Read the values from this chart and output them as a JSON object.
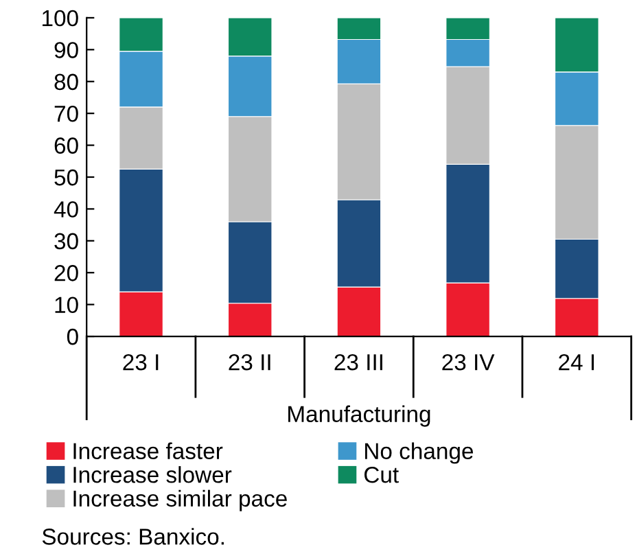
{
  "chart_data": {
    "type": "bar",
    "stacked": true,
    "xlabel": "Manufacturing",
    "categories": [
      "23 I",
      "23 II",
      "23 III",
      "23 IV",
      "24 I"
    ],
    "series": [
      {
        "name": "Increase faster",
        "color": "#ed1c2e",
        "values": [
          14,
          10.4,
          15.5,
          16.8,
          11.9
        ]
      },
      {
        "name": "Increase slower",
        "color": "#1f4e7f",
        "values": [
          38.5,
          25.6,
          27.4,
          37.2,
          18.6
        ]
      },
      {
        "name": "Increase similar pace",
        "color": "#bfbfbf",
        "values": [
          19.5,
          33,
          36.4,
          30.7,
          35.7
        ]
      },
      {
        "name": "No change",
        "color": "#3e97cc",
        "values": [
          17.5,
          19,
          13.9,
          8.5,
          16.8
        ]
      },
      {
        "name": "Cut",
        "color": "#0e8a5f",
        "values": [
          10.5,
          12,
          6.8,
          6.8,
          17
        ]
      }
    ],
    "ylim": [
      0,
      100
    ],
    "yticks": [
      0,
      10,
      20,
      30,
      40,
      50,
      60,
      70,
      80,
      90,
      100
    ],
    "grid": false,
    "legend": "bottom",
    "annotations": [
      "Sources: Banxico."
    ]
  }
}
